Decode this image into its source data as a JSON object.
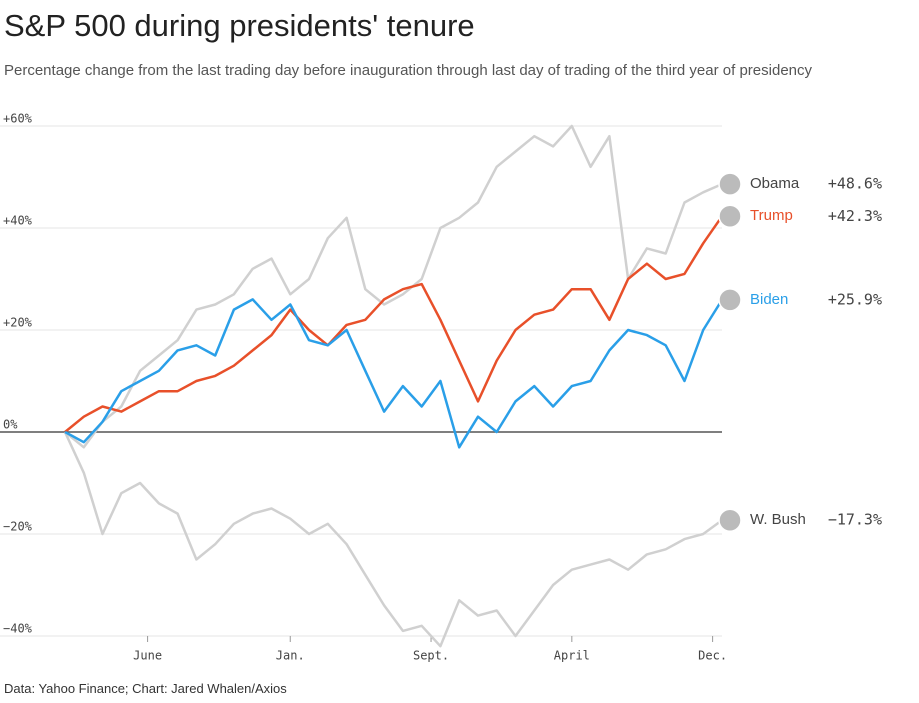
{
  "chart_data": {
    "type": "line",
    "title": "S&P 500 during presidents' tenure",
    "subtitle": "Percentage change from the last trading day before inauguration through last day of trading of the third year of presidency",
    "source": "Data: Yahoo Finance; Chart: Jared Whalen/Axios",
    "x": [
      0,
      1,
      2,
      3,
      4,
      5,
      6,
      7,
      8,
      9,
      10,
      11,
      12,
      13,
      14,
      15,
      16,
      17,
      18,
      19,
      20,
      21,
      22,
      23,
      24,
      25,
      26,
      27,
      28,
      29,
      30,
      31,
      32,
      33,
      34,
      35
    ],
    "xlim": [
      0,
      35
    ],
    "xticks": [
      {
        "value": 4.4,
        "label": "June"
      },
      {
        "value": 12,
        "label": "Jan."
      },
      {
        "value": 19.5,
        "label": "Sept."
      },
      {
        "value": 27,
        "label": "April"
      },
      {
        "value": 34.5,
        "label": "Dec."
      }
    ],
    "ylim": [
      -40,
      60
    ],
    "yticks": [
      {
        "value": 60,
        "label": "+60%"
      },
      {
        "value": 40,
        "label": "+40%"
      },
      {
        "value": 20,
        "label": "+20%"
      },
      {
        "value": 0,
        "label": "0%"
      },
      {
        "value": -20,
        "label": "−20%"
      },
      {
        "value": -40,
        "label": "−40%"
      }
    ],
    "grid": true,
    "series": [
      {
        "name": "Obama",
        "color": "#d0d0d0",
        "label_color": "#444444",
        "values": [
          0,
          -3,
          2,
          5,
          12,
          15,
          18,
          24,
          25,
          27,
          32,
          34,
          27,
          30,
          38,
          42,
          28,
          25,
          27,
          30,
          40,
          42,
          45,
          52,
          55,
          58,
          56,
          60,
          52,
          58,
          30,
          36,
          35,
          45,
          47,
          48.6
        ],
        "value_labels": [
          "+48.6%"
        ]
      },
      {
        "name": "W. Bush",
        "color": "#d0d0d0",
        "label_color": "#444444",
        "values": [
          0,
          -8,
          -20,
          -12,
          -10,
          -14,
          -16,
          -25,
          -22,
          -18,
          -16,
          -15,
          -17,
          -20,
          -18,
          -22,
          -28,
          -34,
          -39,
          -38,
          -42,
          -33,
          -36,
          -35,
          -40,
          -35,
          -30,
          -27,
          -26,
          -25,
          -27,
          -24,
          -23,
          -21,
          -20,
          -17.3
        ],
        "value_labels": [
          "−17.3%"
        ]
      },
      {
        "name": "Trump",
        "color": "#e8502a",
        "label_color": "#e8502a",
        "values": [
          0,
          3,
          5,
          4,
          6,
          8,
          8,
          10,
          11,
          13,
          16,
          19,
          24,
          20,
          17,
          21,
          22,
          26,
          28,
          29,
          22,
          14,
          6,
          14,
          20,
          23,
          24,
          28,
          28,
          22,
          30,
          33,
          30,
          31,
          37,
          42.3
        ],
        "value_labels": [
          "+42.3%"
        ]
      },
      {
        "name": "Biden",
        "color": "#2a9fe8",
        "label_color": "#2a9fe8",
        "values": [
          0,
          -2,
          2,
          8,
          10,
          12,
          16,
          17,
          15,
          24,
          26,
          22,
          25,
          18,
          17,
          20,
          12,
          4,
          9,
          5,
          10,
          -3,
          3,
          0,
          6,
          9,
          5,
          9,
          10,
          16,
          20,
          19,
          17,
          10,
          20,
          25.9
        ],
        "value_labels": [
          "+25.9%"
        ]
      }
    ]
  }
}
